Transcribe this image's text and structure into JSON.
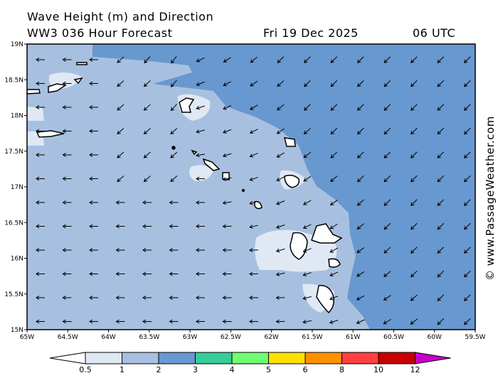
{
  "header": {
    "title": "Wave Height (m) and Direction",
    "model": "WW3 036 Hour Forecast",
    "date": "Fri 19 Dec 2025",
    "time": "06 UTC"
  },
  "watermark": "© www.PassageWeather.com",
  "map": {
    "lat_labels": [
      "19N",
      "18.5N",
      "18N",
      "17.5N",
      "17N",
      "16.5N",
      "16N",
      "15.5N",
      "15N"
    ],
    "lon_labels": [
      "65W",
      "64.5W",
      "64W",
      "63.5W",
      "63W",
      "62.5W",
      "62W",
      "61.5W",
      "61W",
      "60.5W",
      "60W",
      "59.5W"
    ],
    "lat_range": [
      15,
      19
    ],
    "lon_range": [
      -65,
      -59.5
    ],
    "land_color": "#ffffff",
    "predominant_direction_east": "toward southwest",
    "predominant_direction_west": "toward west"
  },
  "legend": {
    "ticks": [
      "0.5",
      "1",
      "2",
      "3",
      "4",
      "5",
      "6",
      "8",
      "10",
      "12"
    ],
    "colors": [
      "#e0e8f4",
      "#a8c0e0",
      "#6898d0",
      "#38cc98",
      "#70ff70",
      "#ffe000",
      "#ff9000",
      "#ff4040",
      "#c80000"
    ],
    "under_color": "#ffffff",
    "over_color": "#c800c8"
  }
}
